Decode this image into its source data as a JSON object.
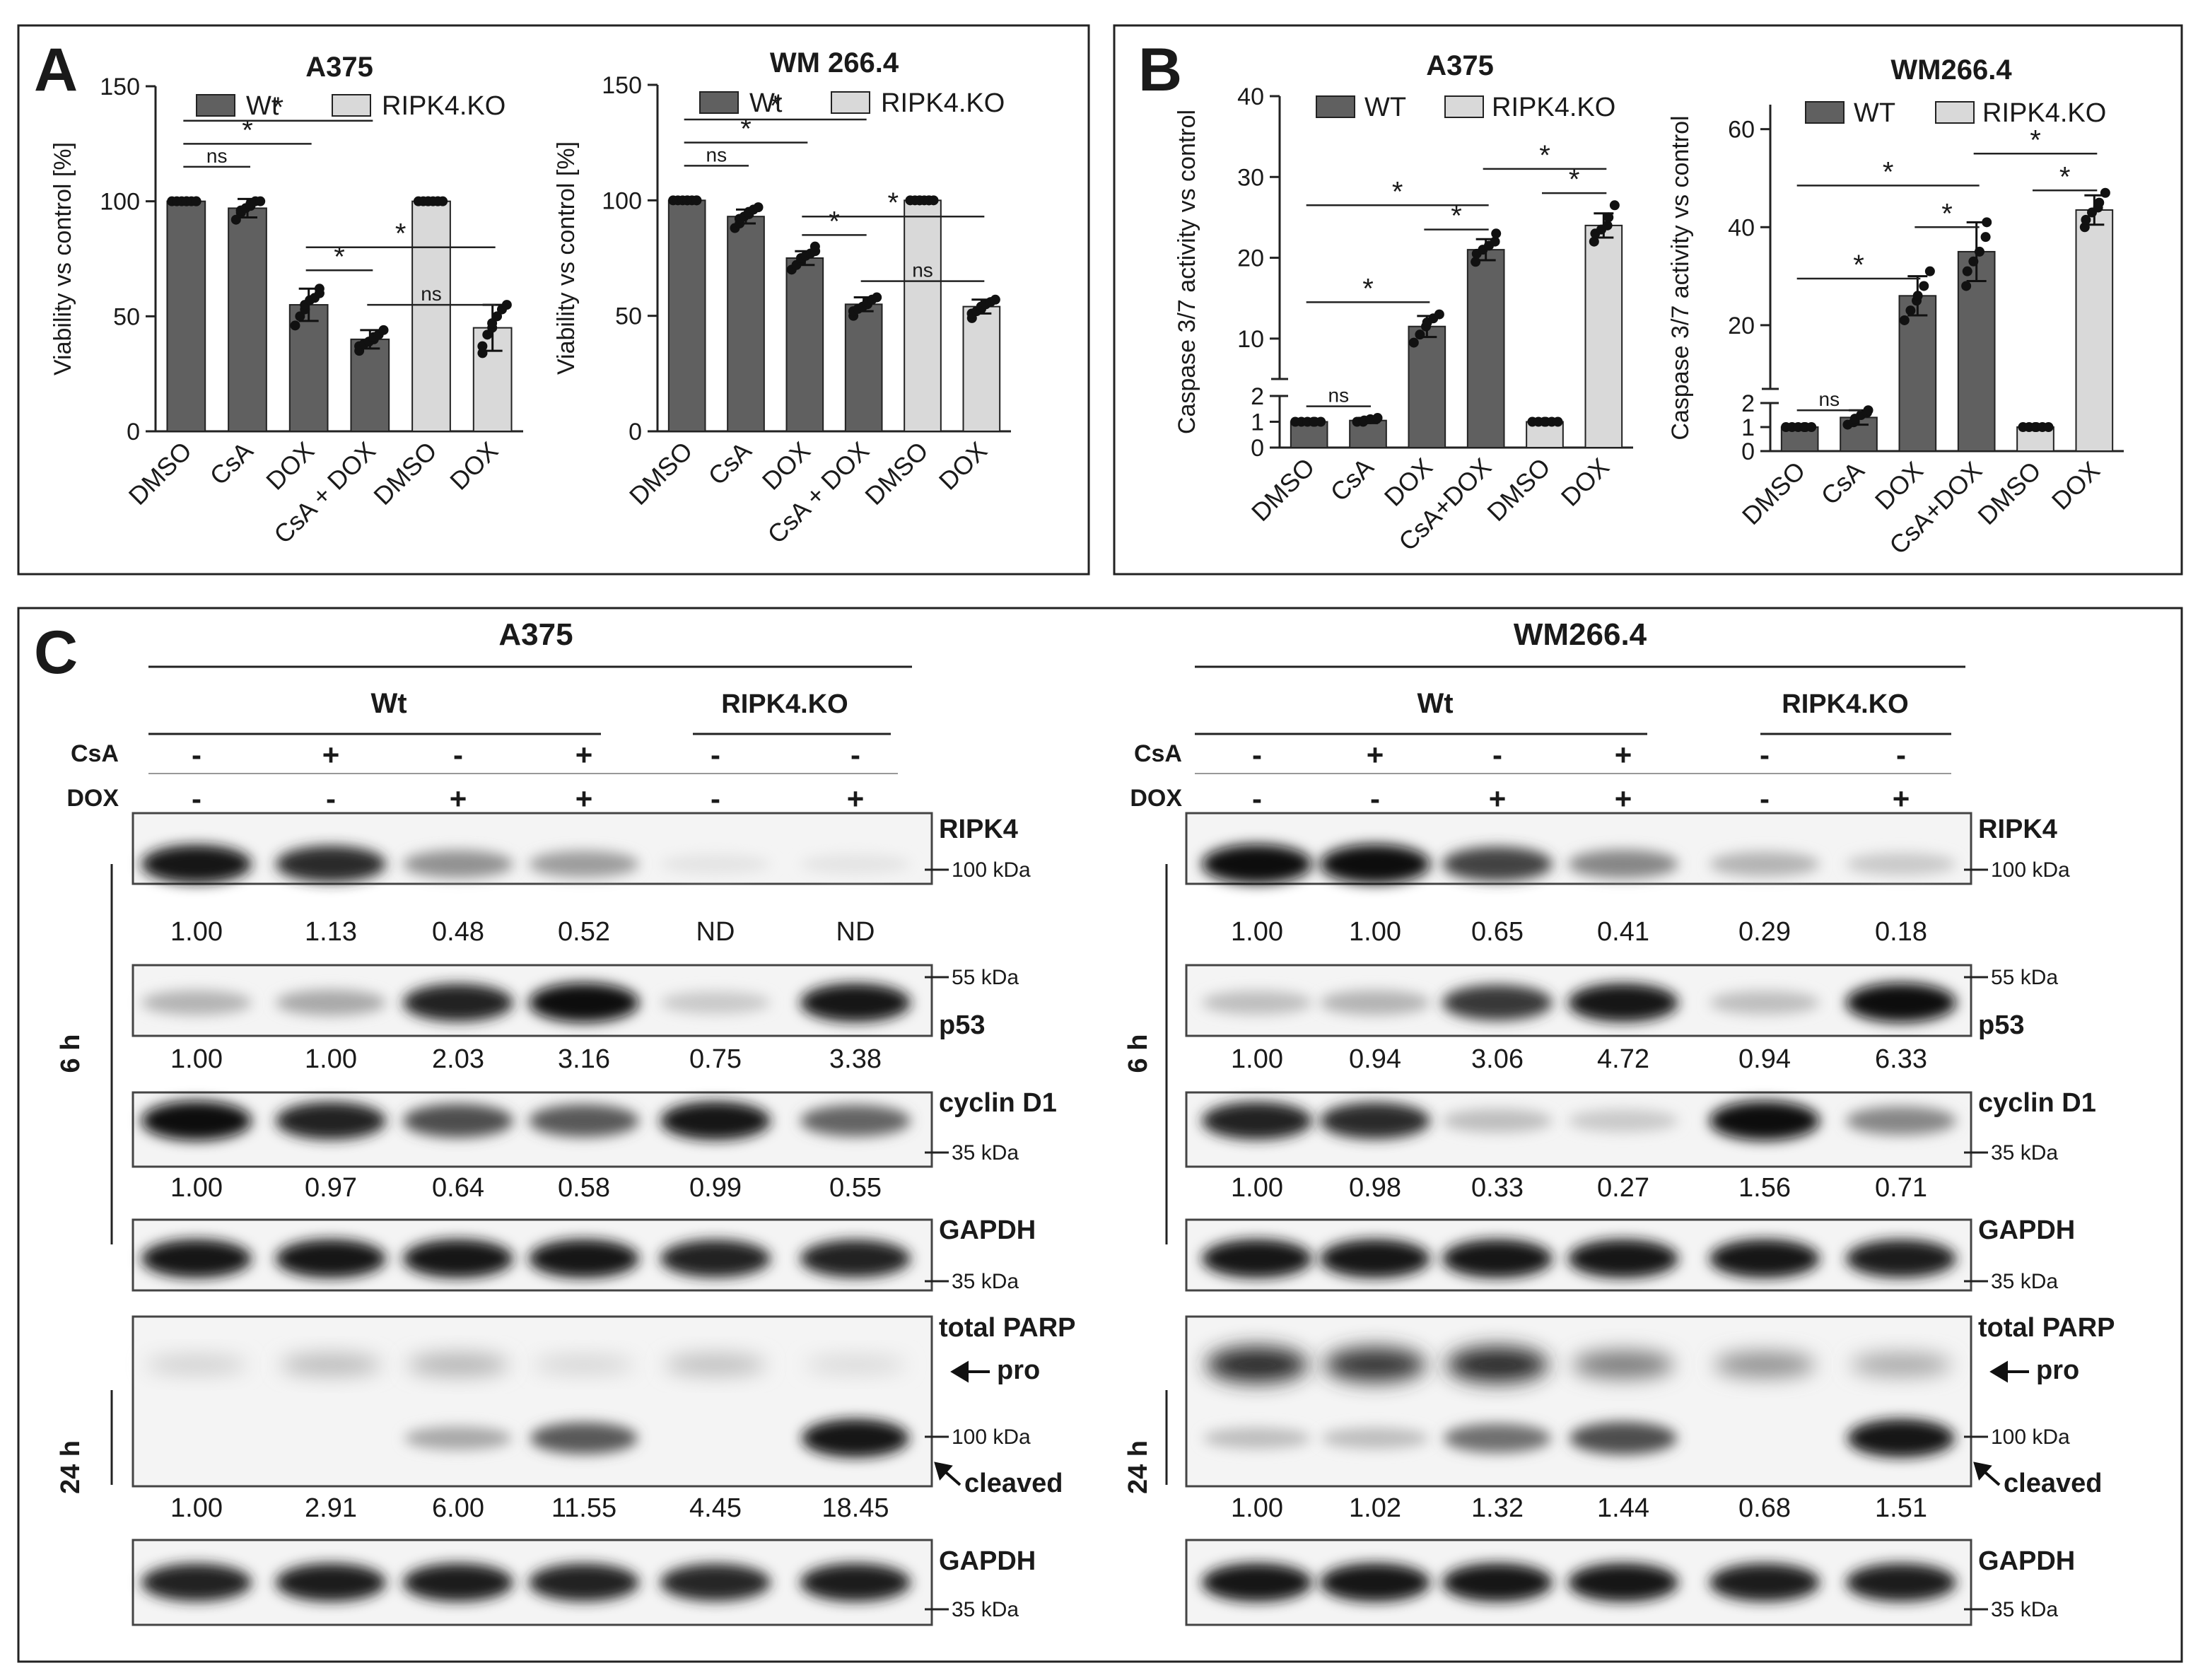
{
  "panel_labels": {
    "a": "A",
    "b": "B",
    "c": "C"
  },
  "legend": {
    "a": {
      "wt": "Wt",
      "ko": "RIPK4.KO"
    },
    "b": {
      "wt": "WT",
      "ko": "RIPK4.KO"
    }
  },
  "colors": {
    "wt": "#606060",
    "ko": "#d9d9d9",
    "ink": "#1a1a1a"
  },
  "chart_data": [
    {
      "id": "A-A375",
      "type": "bar",
      "title": "A375",
      "ylabel": "Viability vs control [%]",
      "ylim": [
        0,
        150
      ],
      "yticks": [
        0,
        50,
        100,
        150
      ],
      "categories": [
        "DMSO",
        "CsA",
        "DOX",
        "CsA + DOX",
        "DMSO",
        "DOX"
      ],
      "groups": [
        "wt",
        "wt",
        "wt",
        "wt",
        "ko",
        "ko"
      ],
      "values": [
        100,
        97,
        55,
        40,
        100,
        45
      ],
      "errors": [
        0.5,
        4,
        7,
        4,
        0.5,
        10
      ],
      "points": [
        [
          100,
          100,
          100,
          100,
          100,
          100,
          100,
          100
        ],
        [
          92,
          95,
          96,
          97,
          98,
          99,
          100,
          100
        ],
        [
          46,
          50,
          53,
          55,
          57,
          58,
          60,
          62
        ],
        [
          35,
          37,
          38,
          39,
          40,
          41,
          42,
          44
        ],
        [
          100,
          100,
          100,
          100,
          100,
          100,
          100,
          100
        ],
        [
          34,
          37,
          42,
          45,
          47,
          50,
          53,
          55
        ]
      ],
      "brackets": [
        {
          "i": 0,
          "j": 1,
          "level": 115,
          "text": "ns"
        },
        {
          "i": 0,
          "j": 2,
          "level": 125,
          "text": "*"
        },
        {
          "i": 0,
          "j": 3,
          "level": 135,
          "text": "*"
        },
        {
          "i": 2,
          "j": 3,
          "level": 70,
          "text": "*"
        },
        {
          "i": 2,
          "j": 5,
          "level": 80,
          "text": "*"
        },
        {
          "i": 3,
          "j": 5,
          "level": 55,
          "text": "ns"
        }
      ]
    },
    {
      "id": "A-WM",
      "type": "bar",
      "title": "WM 266.4",
      "ylabel": "Viability vs control [%]",
      "ylim": [
        0,
        150
      ],
      "yticks": [
        0,
        50,
        100,
        150
      ],
      "categories": [
        "DMSO",
        "CsA",
        "DOX",
        "CsA + DOX",
        "DMSO",
        "DOX"
      ],
      "groups": [
        "wt",
        "wt",
        "wt",
        "wt",
        "ko",
        "ko"
      ],
      "values": [
        100,
        93,
        75,
        55,
        100,
        54
      ],
      "errors": [
        0.5,
        3,
        3,
        3,
        0.5,
        3
      ],
      "points": [
        [
          100,
          100,
          100,
          100,
          100,
          100,
          100,
          100
        ],
        [
          88,
          90,
          92,
          93,
          94,
          95,
          96,
          97
        ],
        [
          70,
          72,
          74,
          75,
          76,
          77,
          78,
          80
        ],
        [
          50,
          52,
          53,
          54,
          55,
          56,
          57,
          58
        ],
        [
          100,
          100,
          100,
          100,
          100,
          100,
          100,
          100
        ],
        [
          49,
          51,
          52,
          53,
          54,
          55,
          56,
          57
        ]
      ],
      "brackets": [
        {
          "i": 0,
          "j": 1,
          "level": 115,
          "text": "ns"
        },
        {
          "i": 0,
          "j": 2,
          "level": 125,
          "text": "*"
        },
        {
          "i": 0,
          "j": 3,
          "level": 135,
          "text": "*"
        },
        {
          "i": 2,
          "j": 3,
          "level": 85,
          "text": "*"
        },
        {
          "i": 2,
          "j": 5,
          "level": 93,
          "text": "*"
        },
        {
          "i": 3,
          "j": 5,
          "level": 65,
          "text": "ns"
        }
      ]
    },
    {
      "id": "B-A375",
      "type": "bar",
      "title": "A375",
      "ylabel": "Caspase 3/7 activity vs control",
      "ylim": [
        0,
        40
      ],
      "axis_break": [
        2,
        5
      ],
      "yticks_low": [
        0,
        1,
        2
      ],
      "yticks_high": [
        10,
        20,
        30,
        40
      ],
      "categories": [
        "DMSO",
        "CsA",
        "DOX",
        "CsA+DOX",
        "DMSO",
        "DOX"
      ],
      "groups": [
        "wt",
        "wt",
        "wt",
        "wt",
        "ko",
        "ko"
      ],
      "values": [
        1.0,
        1.05,
        11.5,
        21,
        1.0,
        24
      ],
      "errors": [
        0.02,
        0.1,
        1.3,
        1.3,
        0.02,
        1.5
      ],
      "points": [
        [
          1,
          1,
          1,
          1,
          1,
          1
        ],
        [
          1.0,
          1.0,
          1.05,
          1.1,
          1.1,
          1.15
        ],
        [
          9.5,
          10.5,
          11.5,
          12.0,
          12.5,
          13.0
        ],
        [
          19.5,
          20.5,
          21.0,
          21.5,
          22.0,
          23.0
        ],
        [
          1,
          1,
          1,
          1,
          1,
          1
        ],
        [
          22.0,
          23.0,
          23.5,
          24.0,
          25.0,
          26.5
        ]
      ],
      "brackets": [
        {
          "i": 0,
          "j": 1,
          "level": 1.6,
          "text": "ns"
        },
        {
          "i": 0,
          "j": 2,
          "level": 14.5,
          "text": "*"
        },
        {
          "i": 0,
          "j": 3,
          "level": 26.5,
          "text": "*"
        },
        {
          "i": 2,
          "j": 3,
          "level": 23.5,
          "text": "*"
        },
        {
          "i": 3,
          "j": 5,
          "level": 31,
          "text": "*"
        },
        {
          "i": 4,
          "j": 5,
          "level": 28,
          "text": "*"
        }
      ]
    },
    {
      "id": "B-WM",
      "type": "bar",
      "title": "WM266.4",
      "ylabel": "Caspase 3/7 activity vs control",
      "ylim": [
        0,
        65
      ],
      "axis_break": [
        2,
        7
      ],
      "yticks_low": [
        0,
        1,
        2
      ],
      "yticks_high": [
        20,
        40,
        60
      ],
      "categories": [
        "DMSO",
        "CsA",
        "DOX",
        "CsA+DOX",
        "DMSO",
        "DOX"
      ],
      "groups": [
        "wt",
        "wt",
        "wt",
        "wt",
        "ko",
        "ko"
      ],
      "values": [
        1.0,
        1.4,
        26,
        35,
        1.0,
        43.5
      ],
      "errors": [
        0.02,
        0.3,
        4,
        6,
        0.02,
        3
      ],
      "points": [
        [
          1,
          1,
          1,
          1,
          1,
          1
        ],
        [
          1.1,
          1.2,
          1.35,
          1.5,
          1.6,
          1.7
        ],
        [
          21,
          23,
          25,
          26,
          28,
          31
        ],
        [
          28,
          31,
          33,
          35,
          38,
          41
        ],
        [
          1,
          1,
          1,
          1,
          1,
          1
        ],
        [
          40,
          41.5,
          43,
          44,
          45,
          47
        ]
      ],
      "brackets": [
        {
          "i": 0,
          "j": 1,
          "level": 1.7,
          "text": "ns"
        },
        {
          "i": 0,
          "j": 2,
          "level": 29.5,
          "text": "*"
        },
        {
          "i": 0,
          "j": 3,
          "level": 48.5,
          "text": "*"
        },
        {
          "i": 2,
          "j": 3,
          "level": 40,
          "text": "*"
        },
        {
          "i": 3,
          "j": 5,
          "level": 55,
          "text": "*"
        },
        {
          "i": 4,
          "j": 5,
          "level": 47.5,
          "text": "*"
        }
      ]
    }
  ],
  "blots": [
    {
      "cell_line": "A375",
      "wt_label": "Wt",
      "ko_label": "RIPK4.KO",
      "row_csa": "CsA",
      "row_dox": "DOX",
      "csa_signs": [
        "-",
        "+",
        "-",
        "+",
        "-",
        "-"
      ],
      "dox_signs": [
        "-",
        "-",
        "+",
        "+",
        "-",
        "+"
      ],
      "time_6h": "6 h",
      "time_24h": "24 h",
      "rows": [
        {
          "protein": "RIPK4",
          "marker": "100 kDa",
          "intensity": [
            0.95,
            0.85,
            0.4,
            0.35,
            0.03,
            0.03
          ],
          "quant": [
            "1.00",
            "1.13",
            "0.48",
            "0.52",
            "ND",
            "ND"
          ]
        },
        {
          "protein": "p53",
          "marker_top": "55 kDa",
          "intensity": [
            0.25,
            0.3,
            0.9,
            1.0,
            0.15,
            0.95
          ],
          "quant": [
            "1.00",
            "1.00",
            "2.03",
            "3.16",
            "0.75",
            "3.38"
          ]
        },
        {
          "protein": "cyclin D1",
          "marker": "35 kDa",
          "intensity": [
            1.0,
            0.9,
            0.7,
            0.65,
            0.95,
            0.6
          ],
          "quant": [
            "1.00",
            "0.97",
            "0.64",
            "0.58",
            "0.99",
            "0.55"
          ]
        },
        {
          "protein": "GAPDH",
          "marker": "35 kDa",
          "intensity": [
            0.95,
            0.95,
            0.95,
            0.95,
            0.9,
            0.9
          ]
        },
        {
          "protein": "total PARP",
          "pro": "pro",
          "marker": "100 kDa",
          "cleaved": "cleaved",
          "pro_intensity": [
            0.12,
            0.22,
            0.25,
            0.1,
            0.2,
            0.08
          ],
          "cleaved_intensity": [
            0.0,
            0.0,
            0.3,
            0.65,
            0.0,
            0.95
          ],
          "quant": [
            "1.00",
            "2.91",
            "6.00",
            "11.55",
            "4.45",
            "18.45"
          ]
        },
        {
          "protein": "GAPDH",
          "marker": "35 kDa",
          "intensity": [
            0.9,
            0.92,
            0.92,
            0.9,
            0.88,
            0.92
          ]
        }
      ]
    },
    {
      "cell_line": "WM266.4",
      "wt_label": "Wt",
      "ko_label": "RIPK4.KO",
      "row_csa": "CsA",
      "row_dox": "DOX",
      "csa_signs": [
        "-",
        "+",
        "-",
        "+",
        "-",
        "-"
      ],
      "dox_signs": [
        "-",
        "-",
        "+",
        "+",
        "-",
        "+"
      ],
      "time_6h": "6 h",
      "time_24h": "24 h",
      "rows": [
        {
          "protein": "RIPK4",
          "marker": "100 kDa",
          "intensity": [
            1.0,
            1.0,
            0.75,
            0.45,
            0.25,
            0.15
          ],
          "quant": [
            "1.00",
            "1.00",
            "0.65",
            "0.41",
            "0.29",
            "0.18"
          ]
        },
        {
          "protein": "p53",
          "marker_top": "55 kDa",
          "intensity": [
            0.2,
            0.25,
            0.8,
            0.95,
            0.2,
            1.0
          ],
          "quant": [
            "1.00",
            "0.94",
            "3.06",
            "4.72",
            "0.94",
            "6.33"
          ]
        },
        {
          "protein": "cyclin D1",
          "marker": "35 kDa",
          "intensity": [
            0.9,
            0.85,
            0.2,
            0.15,
            1.0,
            0.45
          ],
          "quant": [
            "1.00",
            "0.98",
            "0.33",
            "0.27",
            "1.56",
            "0.71"
          ]
        },
        {
          "protein": "GAPDH",
          "marker": "35 kDa",
          "intensity": [
            0.95,
            0.95,
            0.95,
            0.95,
            0.95,
            0.92
          ]
        },
        {
          "protein": "total PARP",
          "pro": "pro",
          "marker": "100 kDa",
          "cleaved": "cleaved",
          "pro_intensity": [
            0.85,
            0.8,
            0.85,
            0.5,
            0.4,
            0.3
          ],
          "cleaved_intensity": [
            0.2,
            0.2,
            0.55,
            0.7,
            0.0,
            0.95
          ],
          "quant": [
            "1.00",
            "1.02",
            "1.32",
            "1.44",
            "0.68",
            "1.51"
          ]
        },
        {
          "protein": "GAPDH",
          "marker": "35 kDa",
          "intensity": [
            0.95,
            0.95,
            0.95,
            0.95,
            0.92,
            0.92
          ]
        }
      ]
    }
  ]
}
